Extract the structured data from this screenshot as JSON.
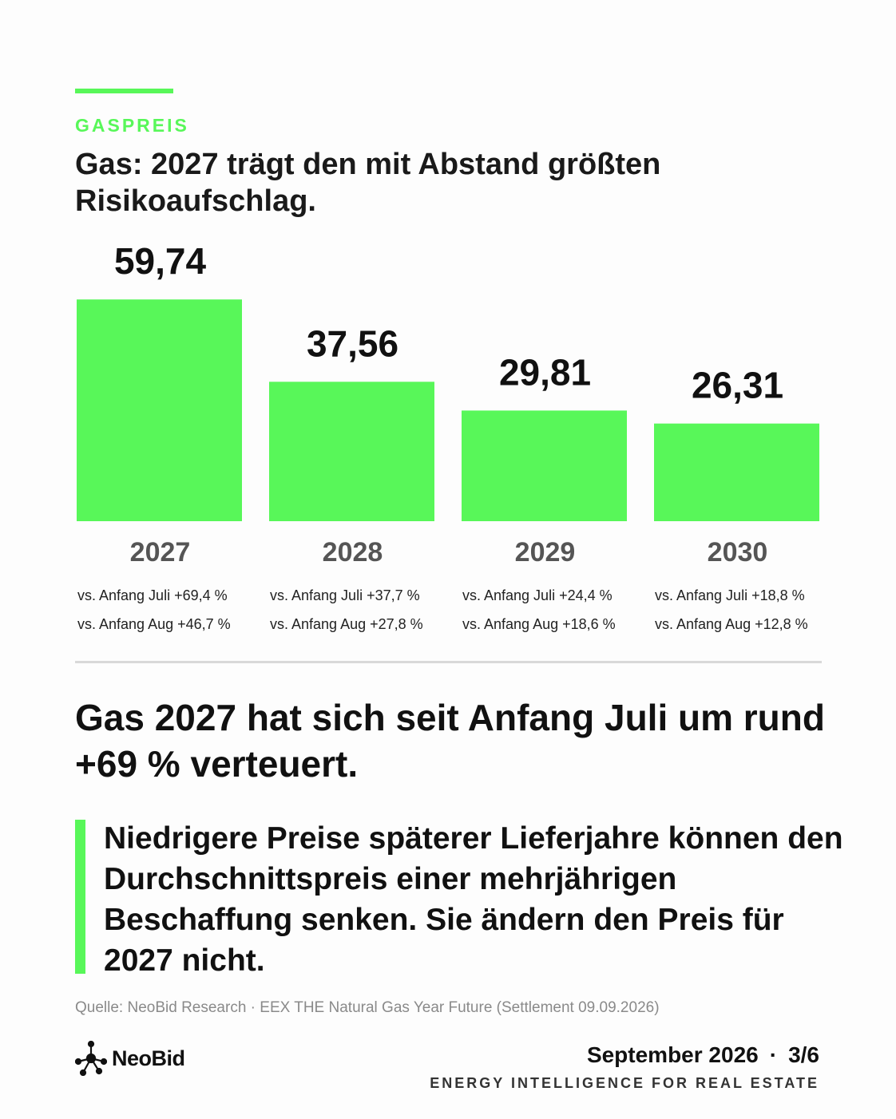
{
  "kicker": "GASPREIS",
  "headline": "Gas: 2027 trägt den mit Abstand größten Risikoaufschlag.",
  "chart_data": {
    "type": "bar",
    "categories": [
      "2027",
      "2028",
      "2029",
      "2030"
    ],
    "values": [
      59.74,
      37.56,
      29.81,
      26.31
    ],
    "value_labels": [
      "59,74",
      "37,56",
      "29,81",
      "26,31"
    ],
    "comparisons": [
      [
        "vs. Anfang Juli +69,4 %",
        "vs. Anfang Aug +46,7 %"
      ],
      [
        "vs. Anfang Juli +37,7 %",
        "vs. Anfang Aug +27,8 %"
      ],
      [
        "vs. Anfang Juli +24,4 %",
        "vs. Anfang Aug +18,6 %"
      ],
      [
        "vs. Anfang Juli +18,8 %",
        "vs. Anfang Aug +12,8 %"
      ]
    ],
    "title": "",
    "xlabel": "",
    "ylabel": "",
    "grid": false,
    "bar_color": "#58f759"
  },
  "statement": "Gas 2027 hat sich seit Anfang Juli um rund +69 % verteuert.",
  "quote": "Niedrigere Preise späterer Lieferjahre können den Durchschnittspreis einer mehrjährigen Beschaffung senken. Sie ändern den Preis für 2027 nicht.",
  "source": "Quelle: NeoBid Research · EEX THE Natural Gas Year Future (Settlement 09.09.2026)",
  "footer": {
    "brand": "NeoBid",
    "brand_icon": "network-node-icon",
    "date": "September 2026",
    "separator": "·",
    "page": "3/6",
    "tagline": "ENERGY INTELLIGENCE FOR REAL ESTATE"
  },
  "colors": {
    "accent": "#58f759",
    "text": "#111111",
    "muted": "#8a8a8a"
  }
}
